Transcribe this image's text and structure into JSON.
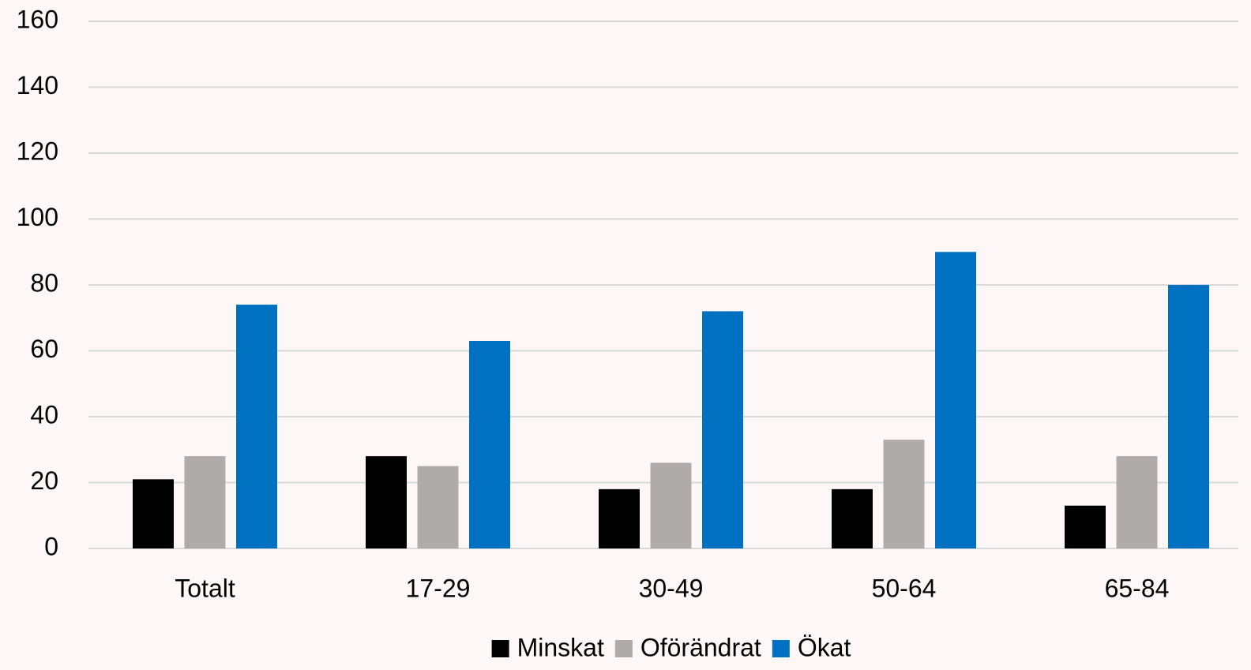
{
  "chart_data": {
    "type": "bar",
    "categories": [
      "Totalt",
      "17-29",
      "30-49",
      "50-64",
      "65-84"
    ],
    "series": [
      {
        "name": "Minskat",
        "color": "#000000",
        "values": [
          21,
          28,
          18,
          18,
          13
        ]
      },
      {
        "name": "Oförändrat",
        "color": "#afabab",
        "values": [
          28,
          25,
          26,
          33,
          28
        ]
      },
      {
        "name": "Ökat",
        "color": "#0070c0",
        "values": [
          74,
          63,
          72,
          90,
          80
        ]
      }
    ],
    "ylim": [
      0,
      160
    ],
    "yticks": [
      0,
      20,
      40,
      60,
      80,
      100,
      120,
      140,
      160
    ],
    "grid": true,
    "legend": "bottom"
  }
}
